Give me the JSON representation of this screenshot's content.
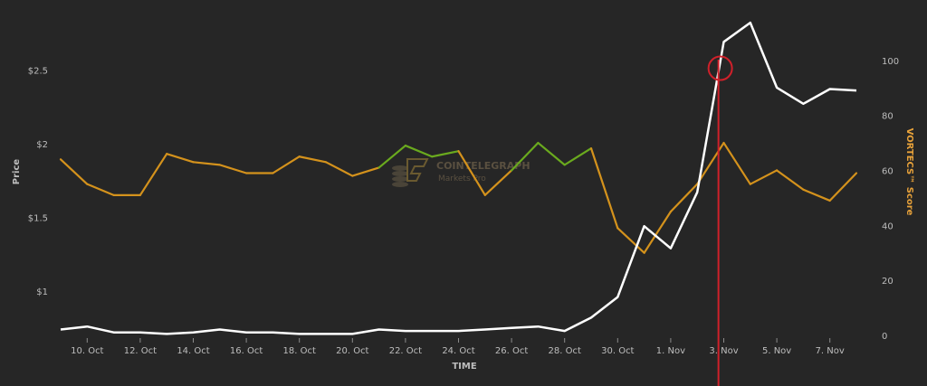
{
  "chart_data": {
    "type": "line",
    "xlabel": "TIME",
    "ylabel": "Price",
    "y2label": "VORTECS™ Score",
    "x_tick_labels": [
      "10. Oct",
      "12. Oct",
      "14. Oct",
      "16. Oct",
      "18. Oct",
      "20. Oct",
      "22. Oct",
      "24. Oct",
      "26. Oct",
      "28. Oct",
      "30. Oct",
      "1. Nov",
      "3. Nov",
      "5. Nov",
      "7. Nov"
    ],
    "y_left_ticks": [
      "$1",
      "$1.5",
      "$2",
      "$2.5"
    ],
    "y_left_lim": [
      0.7,
      2.9
    ],
    "y_right_ticks": [
      "0",
      "20",
      "40",
      "60",
      "80",
      "100"
    ],
    "y_right_lim": [
      0,
      118
    ],
    "grid": false,
    "x": [
      "9. Oct",
      "10. Oct",
      "11. Oct",
      "12. Oct",
      "13. Oct",
      "14. Oct",
      "15. Oct",
      "16. Oct",
      "17. Oct",
      "18. Oct",
      "19. Oct",
      "20. Oct",
      "21. Oct",
      "22. Oct",
      "23. Oct",
      "24. Oct",
      "25. Oct",
      "26. Oct",
      "27. Oct",
      "28. Oct",
      "29. Oct",
      "30. Oct",
      "31. Oct",
      "1. Nov",
      "2. Nov",
      "3. Nov",
      "4. Nov",
      "5. Nov",
      "6. Nov",
      "7. Nov",
      "8. Nov"
    ],
    "series": [
      {
        "name": "Price",
        "axis": "left",
        "color": "#ffffff",
        "values": [
          0.74,
          0.76,
          0.72,
          0.72,
          0.71,
          0.72,
          0.74,
          0.72,
          0.72,
          0.71,
          0.71,
          0.71,
          0.74,
          0.73,
          0.73,
          0.73,
          0.74,
          0.75,
          0.76,
          0.73,
          0.82,
          0.96,
          1.44,
          1.29,
          1.67,
          2.69,
          2.82,
          2.38,
          2.27,
          2.37,
          2.36
        ]
      },
      {
        "name": "VORTECS™ Score",
        "axis": "right",
        "colors": {
          "high": "#6aaa1e",
          "low": "#d4921c"
        },
        "values": [
          64,
          55,
          51,
          51,
          66,
          63,
          62,
          59,
          59,
          65,
          63,
          58,
          61,
          69,
          65,
          67,
          51,
          60,
          70,
          62,
          68,
          39,
          30,
          45,
          55,
          70,
          55,
          60,
          53,
          49,
          59
        ]
      }
    ],
    "signal_date": "3. Nov",
    "signal_color": "#d0202a"
  },
  "watermark": {
    "brand": "COINTELEGRAPH",
    "product": "Markets Pro"
  }
}
